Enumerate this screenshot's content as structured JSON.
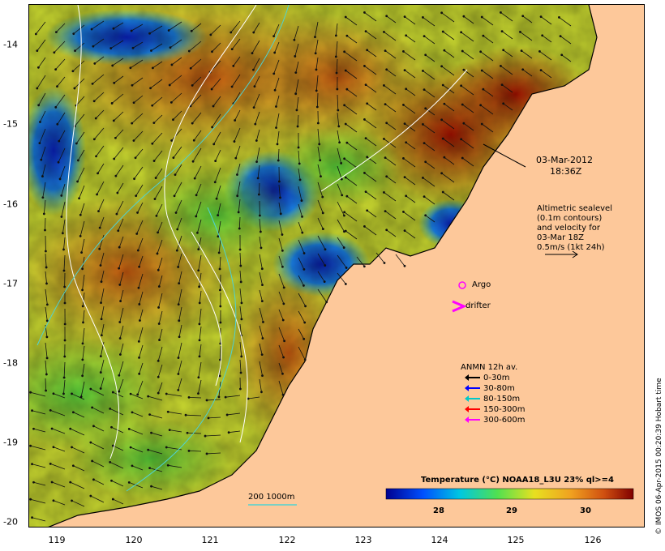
{
  "axes": {
    "x_ticks": [
      "119",
      "120",
      "121",
      "122",
      "123",
      "124",
      "125",
      "126"
    ],
    "y_ticks": [
      "-14",
      "-15",
      "-16",
      "-17",
      "-18",
      "-19",
      "-20"
    ]
  },
  "annotations": {
    "datetime_line1": "03-Mar-2012",
    "datetime_line2": "18:36Z",
    "altimetry_lines": [
      "Altimetric sealevel",
      "(0.1m contours)",
      "and velocity for",
      "03-Mar 18Z",
      "0.5m/s (1kt 24h)"
    ],
    "argo_label": "Argo",
    "drifter_label": "drifter",
    "isobath_label": "200  1000m"
  },
  "legend": {
    "title": "ANMN 12h av.",
    "entries": [
      {
        "label": "0-30m",
        "color": "#000000"
      },
      {
        "label": "30-80m",
        "color": "#0000ff"
      },
      {
        "label": "80-150m",
        "color": "#00c8c8"
      },
      {
        "label": "150-300m",
        "color": "#ff0000"
      },
      {
        "label": "300-600m",
        "color": "#ff00ff"
      }
    ]
  },
  "colorbar": {
    "title": "Temperature (°C) NOAA18_L3U 23% ql>=4",
    "ticks": [
      "28",
      "29",
      "30"
    ]
  },
  "footer": {
    "stamp": "© IMOS 06-Apr-2015 00:20:39 Hobart time"
  },
  "colors": {
    "land": "#fdc89a",
    "isobath": "#4fd2d2",
    "contour": "#ffffff",
    "argo": "#ff00ff"
  }
}
